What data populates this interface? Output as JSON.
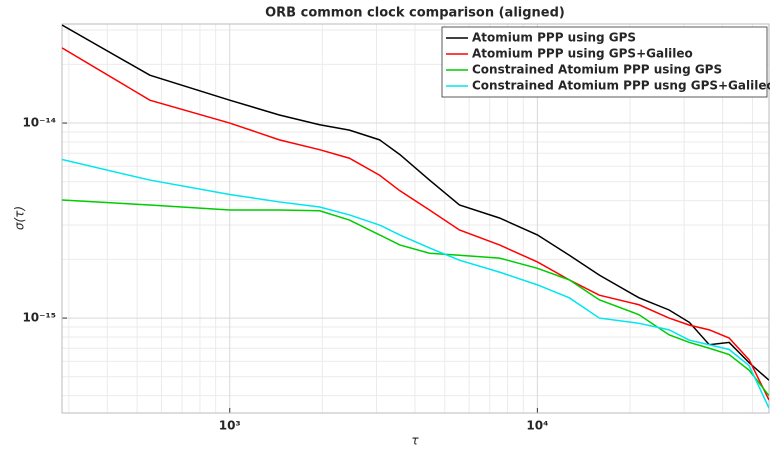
{
  "chart_data": {
    "type": "line",
    "title": "ORB common clock comparison (aligned)",
    "x_label": "τ",
    "y_label": "σ(τ)",
    "x": [
      285,
      550,
      1000,
      1450,
      1960,
      2450,
      3070,
      3570,
      4460,
      5580,
      7530,
      10000,
      12700,
      15900,
      21400,
      26800,
      31200,
      36200,
      42000,
      48800,
      56600
    ],
    "series": [
      {
        "name": "Atomium PPP using GPS",
        "color": "#000000",
        "values": [
          3.18e-14,
          1.76e-14,
          1.31e-14,
          1.1e-14,
          9.8e-15,
          9.2e-15,
          8.2e-15,
          6.9e-15,
          5.1e-15,
          3.8e-15,
          3.26e-15,
          2.67e-15,
          2.1e-15,
          1.66e-15,
          1.27e-15,
          1.1e-15,
          9.5e-16,
          7.3e-16,
          7.5e-16,
          5.9e-16,
          4.8e-16
        ]
      },
      {
        "name": "Atomium PPP using GPS+Galileo",
        "color": "#ff0000",
        "values": [
          2.43e-14,
          1.31e-14,
          1e-14,
          8.2e-15,
          7.3e-15,
          6.6e-15,
          5.4e-15,
          4.5e-15,
          3.58e-15,
          2.83e-15,
          2.37e-15,
          1.94e-15,
          1.57e-15,
          1.31e-15,
          1.17e-15,
          1e-15,
          9.2e-16,
          8.7e-16,
          7.9e-16,
          6.1e-16,
          3.8e-16
        ]
      },
      {
        "name": "Constrained Atomium PPP using GPS",
        "color": "#00cc00",
        "values": [
          4.03e-15,
          3.8e-15,
          3.58e-15,
          3.58e-15,
          3.55e-15,
          3.18e-15,
          2.67e-15,
          2.37e-15,
          2.15e-15,
          2.1e-15,
          2.03e-15,
          1.8e-15,
          1.57e-15,
          1.24e-15,
          1.04e-15,
          8.2e-16,
          7.5e-16,
          7e-16,
          6.5e-16,
          5.4e-16,
          4e-16
        ]
      },
      {
        "name": "Constrained Atomium PPP usng GPS+Galileo",
        "color": "#00e5ee",
        "values": [
          6.5e-15,
          5.1e-15,
          4.3e-15,
          3.94e-15,
          3.71e-15,
          3.38e-15,
          3e-15,
          2.67e-15,
          2.29e-15,
          1.98e-15,
          1.72e-15,
          1.48e-15,
          1.27e-15,
          1e-15,
          9.4e-16,
          8.7e-16,
          7.7e-16,
          7.3e-16,
          6.9e-16,
          5.7e-16,
          3.45e-16
        ]
      }
    ],
    "xlim": [
      285,
      56600
    ],
    "ylim": [
      3.26e-16,
      3.22e-14
    ],
    "xticks": [
      {
        "value": 1000,
        "label": "10³"
      },
      {
        "value": 10000,
        "label": "10⁴"
      }
    ],
    "yticks": [
      {
        "value": 1e-15,
        "label": "10⁻¹⁵"
      },
      {
        "value": 1e-14,
        "label": "10⁻¹⁴"
      }
    ],
    "xscale": "log",
    "yscale": "log",
    "grid": true,
    "minor_grid": true,
    "legend": "upper right"
  }
}
